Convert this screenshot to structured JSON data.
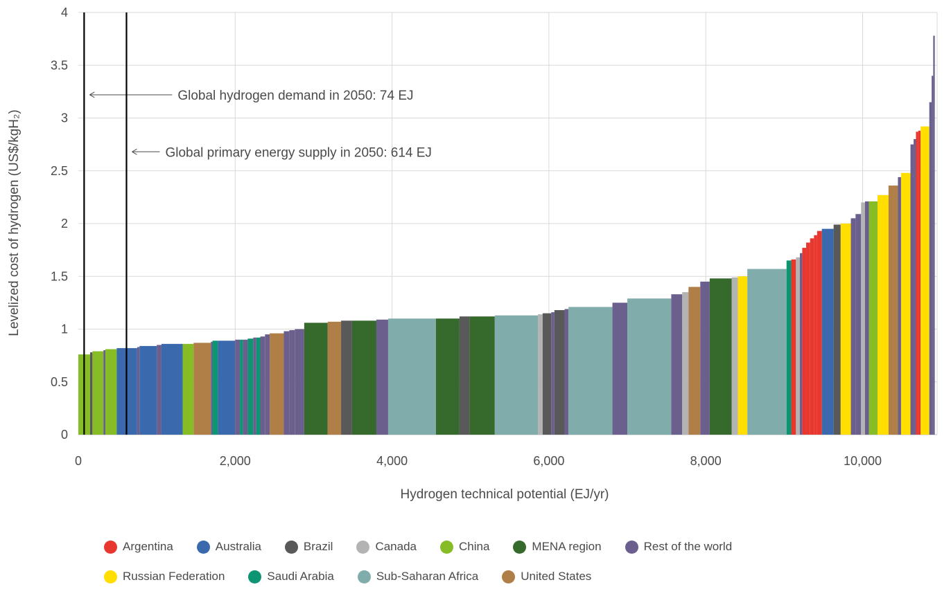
{
  "chart_data": {
    "type": "bar",
    "subtype": "supply-cost-curve",
    "title": "",
    "xlabel": "Hydrogen technical potential (EJ/yr)",
    "ylabel": "Levelized cost of hydrogen (US$/kgH₂)",
    "xlim": [
      0,
      10950
    ],
    "ylim": [
      0,
      4
    ],
    "xticks": [
      0,
      2000,
      4000,
      6000,
      8000,
      10000
    ],
    "xtick_labels": [
      "0",
      "2,000",
      "4,000",
      "6,000",
      "8,000",
      "10,000"
    ],
    "yticks": [
      0,
      0.5,
      1,
      1.5,
      2,
      2.5,
      3,
      3.5,
      4
    ],
    "ytick_labels": [
      "0",
      "0.5",
      "1",
      "1.5",
      "2",
      "2.5",
      "3",
      "3.5",
      "4"
    ],
    "grid": true,
    "legend_position": "bottom",
    "series": [
      {
        "name": "Argentina",
        "color": "#e8372e"
      },
      {
        "name": "Australia",
        "color": "#3a6aad"
      },
      {
        "name": "Brazil",
        "color": "#595959"
      },
      {
        "name": "Canada",
        "color": "#b3b3b3"
      },
      {
        "name": "China",
        "color": "#86bc25"
      },
      {
        "name": "MENA region",
        "color": "#36692c"
      },
      {
        "name": "Rest of the world",
        "color": "#6a5f8d"
      },
      {
        "name": "Russian Federation",
        "color": "#ffde00"
      },
      {
        "name": "Saudi Arabia",
        "color": "#0c9473"
      },
      {
        "name": "Sub-Saharan Africa",
        "color": "#80adac"
      },
      {
        "name": "United States",
        "color": "#b07f48"
      }
    ],
    "segments": [
      [
        "China",
        0,
        150,
        0.76
      ],
      [
        "Brazil",
        150,
        180,
        0.78
      ],
      [
        "China",
        180,
        320,
        0.79
      ],
      [
        "Rest of the world",
        320,
        345,
        0.8
      ],
      [
        "China",
        345,
        490,
        0.81
      ],
      [
        "Australia",
        490,
        750,
        0.82
      ],
      [
        "Rest of the world",
        750,
        780,
        0.83
      ],
      [
        "Australia",
        780,
        1000,
        0.84
      ],
      [
        "Rest of the world",
        1000,
        1060,
        0.85
      ],
      [
        "Australia",
        1060,
        1330,
        0.86
      ],
      [
        "China",
        1330,
        1470,
        0.86
      ],
      [
        "United States",
        1470,
        1690,
        0.87
      ],
      [
        "Rest of the world",
        1690,
        1710,
        0.88
      ],
      [
        "Saudi Arabia",
        1710,
        1780,
        0.89
      ],
      [
        "Australia",
        1780,
        2000,
        0.89
      ],
      [
        "Rest of the world",
        2000,
        2060,
        0.9
      ],
      [
        "Saudi Arabia",
        2060,
        2100,
        0.9
      ],
      [
        "Rest of the world",
        2100,
        2160,
        0.9
      ],
      [
        "Saudi Arabia",
        2160,
        2230,
        0.91
      ],
      [
        "Rest of the world",
        2230,
        2270,
        0.92
      ],
      [
        "Saudi Arabia",
        2270,
        2320,
        0.92
      ],
      [
        "Rest of the world",
        2320,
        2380,
        0.93
      ],
      [
        "Rest of the world",
        2380,
        2440,
        0.95
      ],
      [
        "United States",
        2440,
        2620,
        0.96
      ],
      [
        "Rest of the world",
        2620,
        2690,
        0.98
      ],
      [
        "Rest of the world",
        2690,
        2760,
        0.99
      ],
      [
        "Rest of the world",
        2760,
        2880,
        1.0
      ],
      [
        "MENA region",
        2880,
        3180,
        1.06
      ],
      [
        "United States",
        3180,
        3350,
        1.07
      ],
      [
        "Brazil",
        3350,
        3490,
        1.08
      ],
      [
        "MENA region",
        3490,
        3800,
        1.08
      ],
      [
        "Rest of the world",
        3800,
        3950,
        1.09
      ],
      [
        "Sub-Saharan Africa",
        3950,
        4560,
        1.1
      ],
      [
        "MENA region",
        4560,
        4860,
        1.1
      ],
      [
        "Brazil",
        4860,
        4990,
        1.12
      ],
      [
        "MENA region",
        4990,
        5310,
        1.12
      ],
      [
        "Sub-Saharan Africa",
        5310,
        5860,
        1.13
      ],
      [
        "Canada",
        5860,
        5920,
        1.14
      ],
      [
        "Brazil",
        5920,
        6030,
        1.15
      ],
      [
        "Rest of the world",
        6030,
        6070,
        1.16
      ],
      [
        "Brazil",
        6070,
        6200,
        1.18
      ],
      [
        "Rest of the world",
        6200,
        6250,
        1.19
      ],
      [
        "Sub-Saharan Africa",
        6250,
        6810,
        1.21
      ],
      [
        "Rest of the world",
        6810,
        7000,
        1.25
      ],
      [
        "Sub-Saharan Africa",
        7000,
        7560,
        1.29
      ],
      [
        "Rest of the world",
        7560,
        7700,
        1.33
      ],
      [
        "Canada",
        7700,
        7780,
        1.35
      ],
      [
        "United States",
        7780,
        7930,
        1.4
      ],
      [
        "Rest of the world",
        7930,
        8050,
        1.45
      ],
      [
        "MENA region",
        8050,
        8330,
        1.48
      ],
      [
        "Canada",
        8330,
        8410,
        1.49
      ],
      [
        "Russian Federation",
        8410,
        8530,
        1.5
      ],
      [
        "Sub-Saharan Africa",
        8530,
        9030,
        1.57
      ],
      [
        "Saudi Arabia",
        9030,
        9090,
        1.65
      ],
      [
        "Argentina",
        9090,
        9150,
        1.66
      ],
      [
        "Canada",
        9150,
        9200,
        1.68
      ],
      [
        "Rest of the world",
        9200,
        9230,
        1.72
      ],
      [
        "Argentina",
        9230,
        9280,
        1.77
      ],
      [
        "Argentina",
        9280,
        9330,
        1.82
      ],
      [
        "Argentina",
        9330,
        9380,
        1.86
      ],
      [
        "Argentina",
        9380,
        9420,
        1.89
      ],
      [
        "Argentina",
        9420,
        9480,
        1.93
      ],
      [
        "Australia",
        9480,
        9630,
        1.95
      ],
      [
        "Brazil",
        9630,
        9720,
        1.99
      ],
      [
        "Russian Federation",
        9720,
        9850,
        2.0
      ],
      [
        "Rest of the world",
        9850,
        9910,
        2.05
      ],
      [
        "Rest of the world",
        9910,
        9980,
        2.09
      ],
      [
        "Canada",
        9980,
        10030,
        2.2
      ],
      [
        "Rest of the world",
        10030,
        10080,
        2.21
      ],
      [
        "China",
        10080,
        10190,
        2.21
      ],
      [
        "Russian Federation",
        10190,
        10330,
        2.27
      ],
      [
        "United States",
        10330,
        10450,
        2.36
      ],
      [
        "Rest of the world",
        10450,
        10490,
        2.44
      ],
      [
        "Russian Federation",
        10490,
        10610,
        2.48
      ],
      [
        "Rest of the world",
        10610,
        10650,
        2.75
      ],
      [
        "Rest of the world",
        10650,
        10680,
        2.8
      ],
      [
        "Argentina",
        10680,
        10710,
        2.87
      ],
      [
        "Argentina",
        10710,
        10740,
        2.88
      ],
      [
        "Russian Federation",
        10740,
        10850,
        2.92
      ],
      [
        "Rest of the world",
        10850,
        10880,
        3.15
      ],
      [
        "Rest of the world",
        10880,
        10900,
        3.4
      ],
      [
        "Rest of the world",
        10900,
        10920,
        3.78
      ]
    ],
    "reference_lines": [
      {
        "x": 74,
        "label": "Global hydrogen demand in 2050: 74 EJ",
        "label_y": 3.22
      },
      {
        "x": 614,
        "label": "Global primary energy supply in 2050: 614 EJ",
        "label_y": 2.68
      }
    ]
  }
}
